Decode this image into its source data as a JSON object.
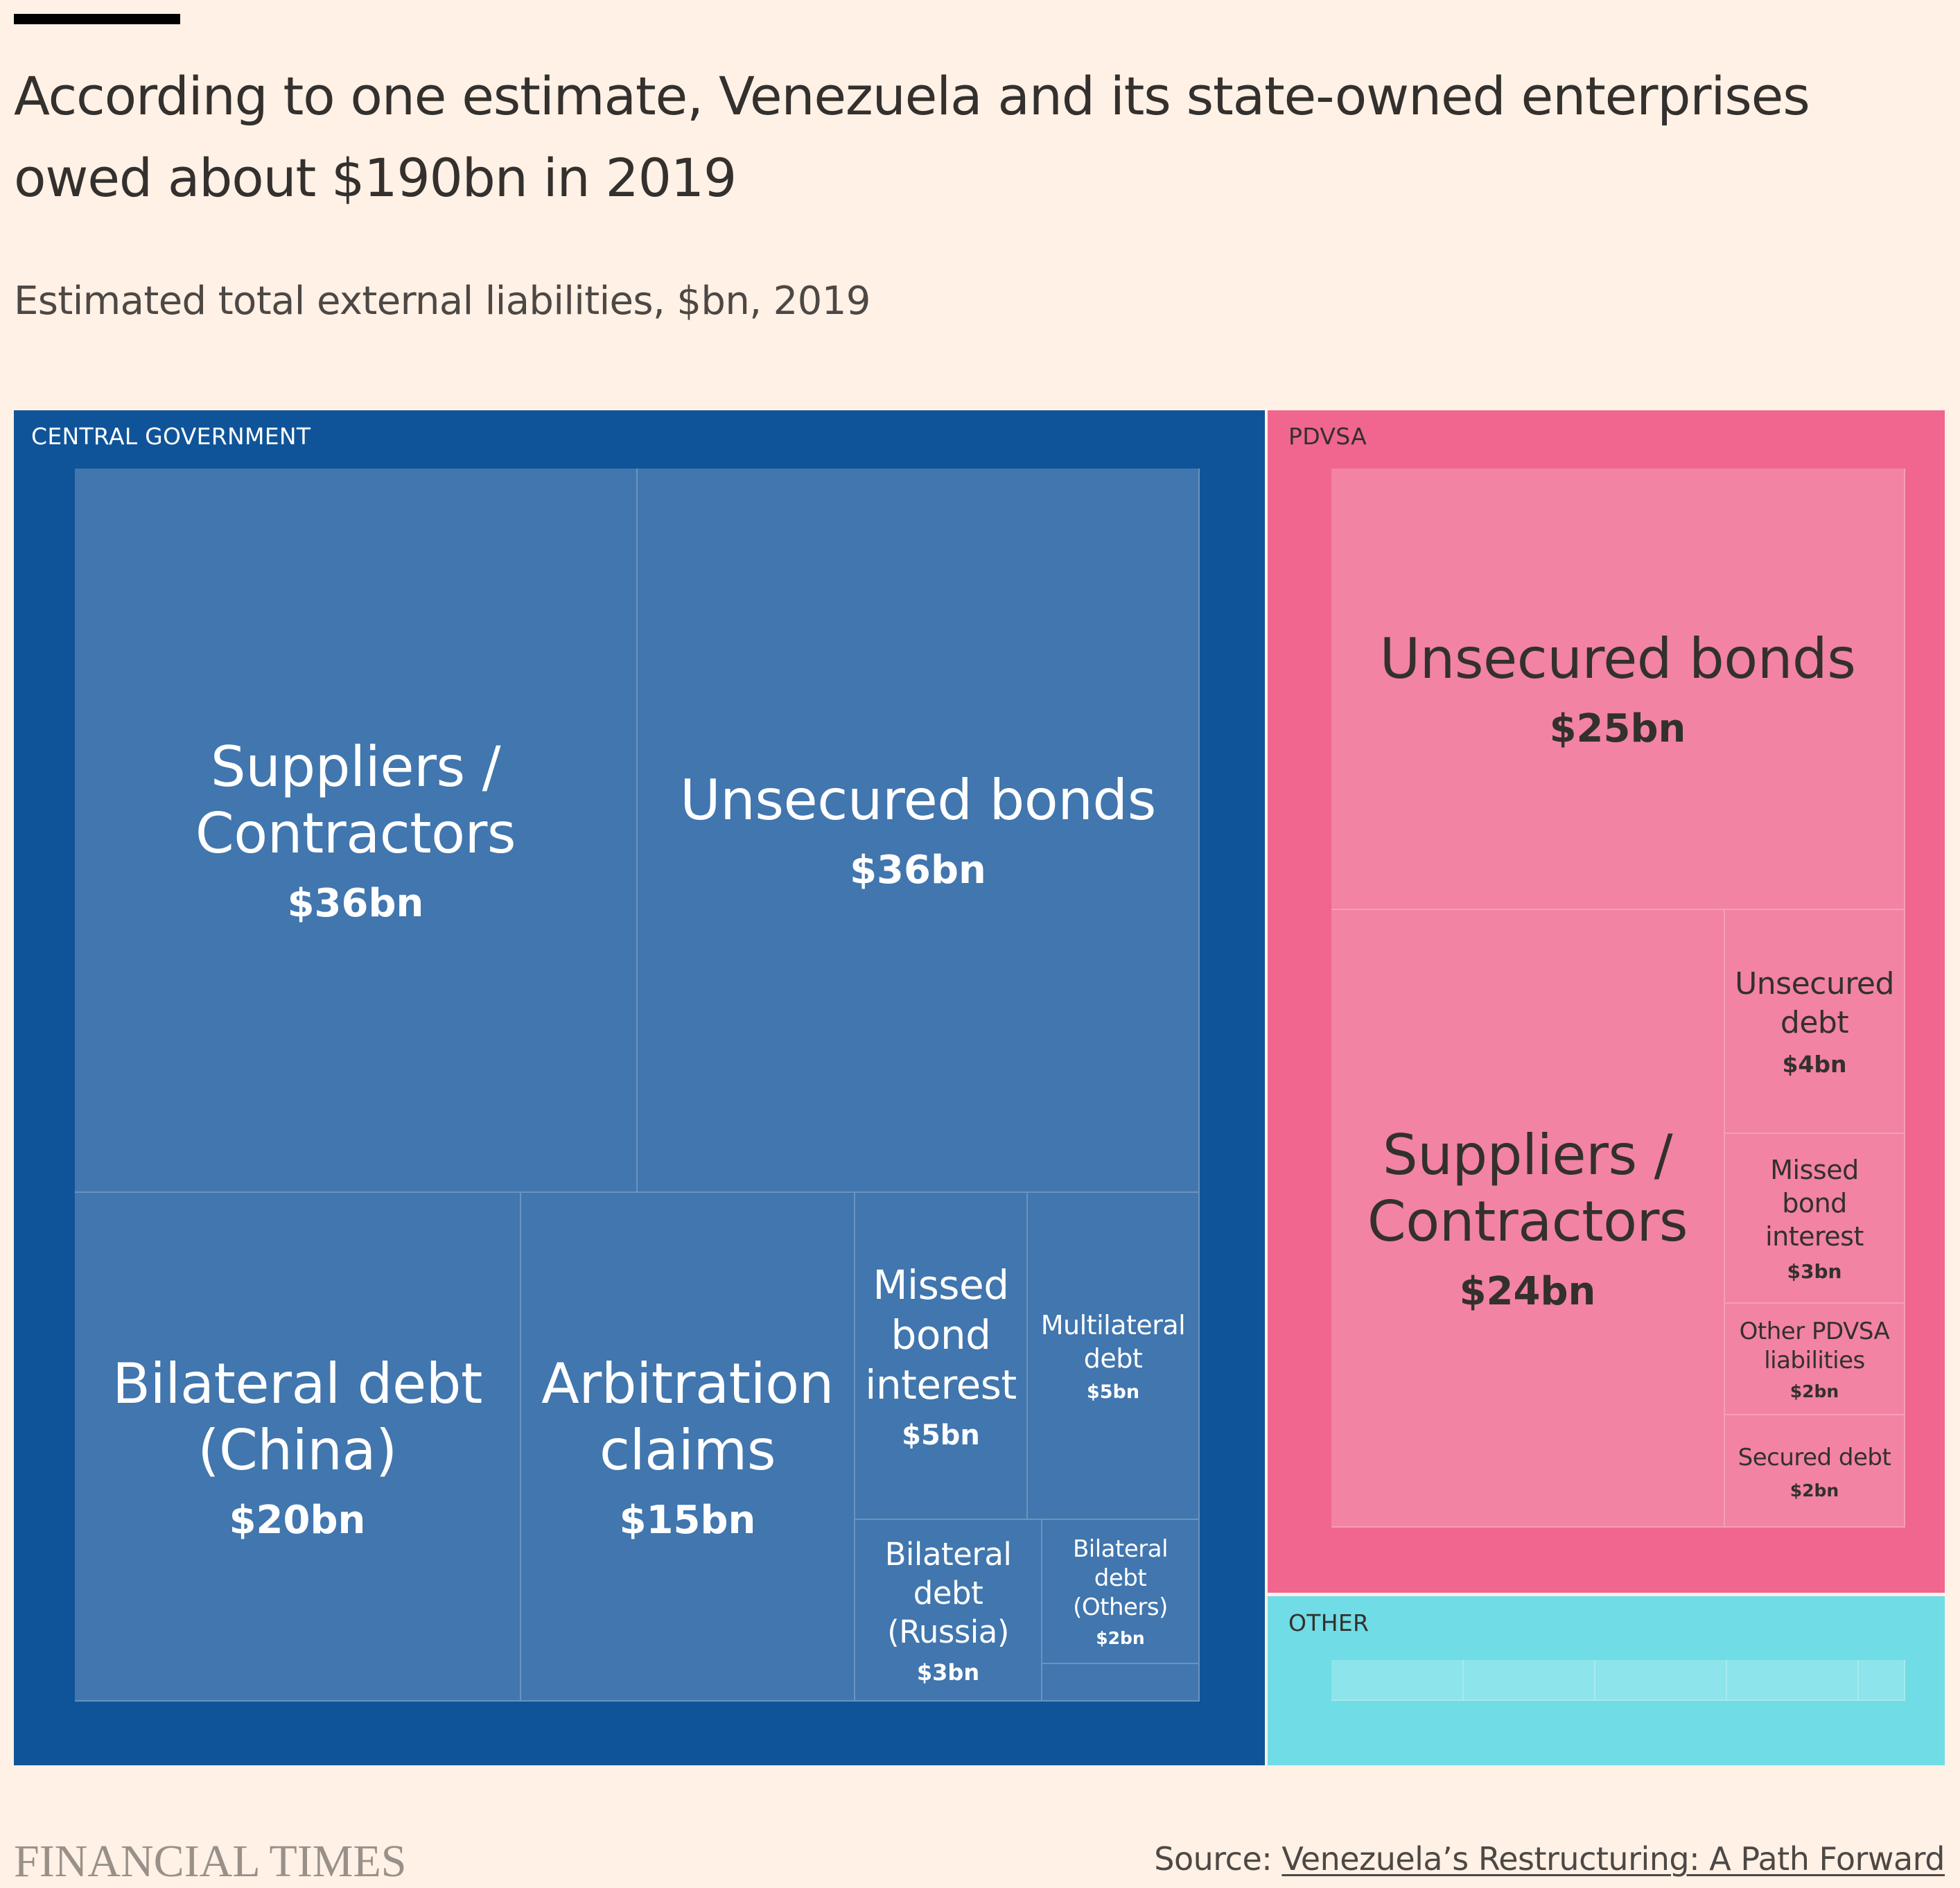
{
  "header": {
    "title": "According to one estimate, Venezuela and its state-owned enterprises owed about $190bn in 2019",
    "subtitle": "Estimated total external liabilities, $bn, 2019"
  },
  "footer": {
    "logo": "FINANCIAL TIMES",
    "source_prefix": "Source: ",
    "source_link": "Venezuela’s Restructuring: A Path Forward"
  },
  "colors": {
    "background": "#FFF1E5",
    "central_government": "#0F5499",
    "central_government_tile": "#4176AE",
    "pdvsa": "#F0668F",
    "pdvsa_tile": "#F283A3",
    "other": "#70DCE5",
    "other_tile": "#8DE4EB"
  },
  "chart_data": {
    "type": "treemap",
    "title": "According to one estimate, Venezuela and its state-owned enterprises owed about $190bn in 2019",
    "subtitle": "Estimated total external liabilities, $bn, 2019",
    "units": "$bn",
    "total": 190,
    "groups": [
      {
        "name": "CENTRAL GOVERNMENT",
        "children": [
          {
            "name": "Suppliers /\nContractors",
            "value": 36,
            "label": "$36bn"
          },
          {
            "name": "Unsecured bonds",
            "value": 36,
            "label": "$36bn"
          },
          {
            "name": "Bilateral debt\n(China)",
            "value": 20,
            "label": "$20bn"
          },
          {
            "name": "Arbitration\nclaims",
            "value": 15,
            "label": "$15bn"
          },
          {
            "name": "Missed\nbond\ninterest",
            "value": 5,
            "label": "$5bn"
          },
          {
            "name": "Multilateral\ndebt",
            "value": 5,
            "label": "$5bn"
          },
          {
            "name": "Bilateral\ndebt\n(Russia)",
            "value": 3,
            "label": "$3bn"
          },
          {
            "name": "Bilateral\ndebt\n(Others)",
            "value": 2,
            "label": "$2bn"
          },
          {
            "name": "",
            "value": 1,
            "label": ""
          }
        ]
      },
      {
        "name": "PDVSA",
        "children": [
          {
            "name": "Unsecured bonds",
            "value": 25,
            "label": "$25bn"
          },
          {
            "name": "Suppliers /\nContractors",
            "value": 24,
            "label": "$24bn"
          },
          {
            "name": "Unsecured\ndebt",
            "value": 4,
            "label": "$4bn"
          },
          {
            "name": "Missed\nbond\ninterest",
            "value": 3,
            "label": "$3bn"
          },
          {
            "name": "Other PDVSA\nliabilities",
            "value": 2,
            "label": "$2bn"
          },
          {
            "name": "Secured debt",
            "value": 2,
            "label": "$2bn"
          }
        ]
      },
      {
        "name": "OTHER",
        "children": [
          {
            "name": "",
            "value": 1,
            "label": ""
          },
          {
            "name": "",
            "value": 1,
            "label": ""
          },
          {
            "name": "",
            "value": 1,
            "label": ""
          },
          {
            "name": "",
            "value": 1,
            "label": ""
          },
          {
            "name": "",
            "value": 0.5,
            "label": ""
          }
        ]
      }
    ]
  }
}
